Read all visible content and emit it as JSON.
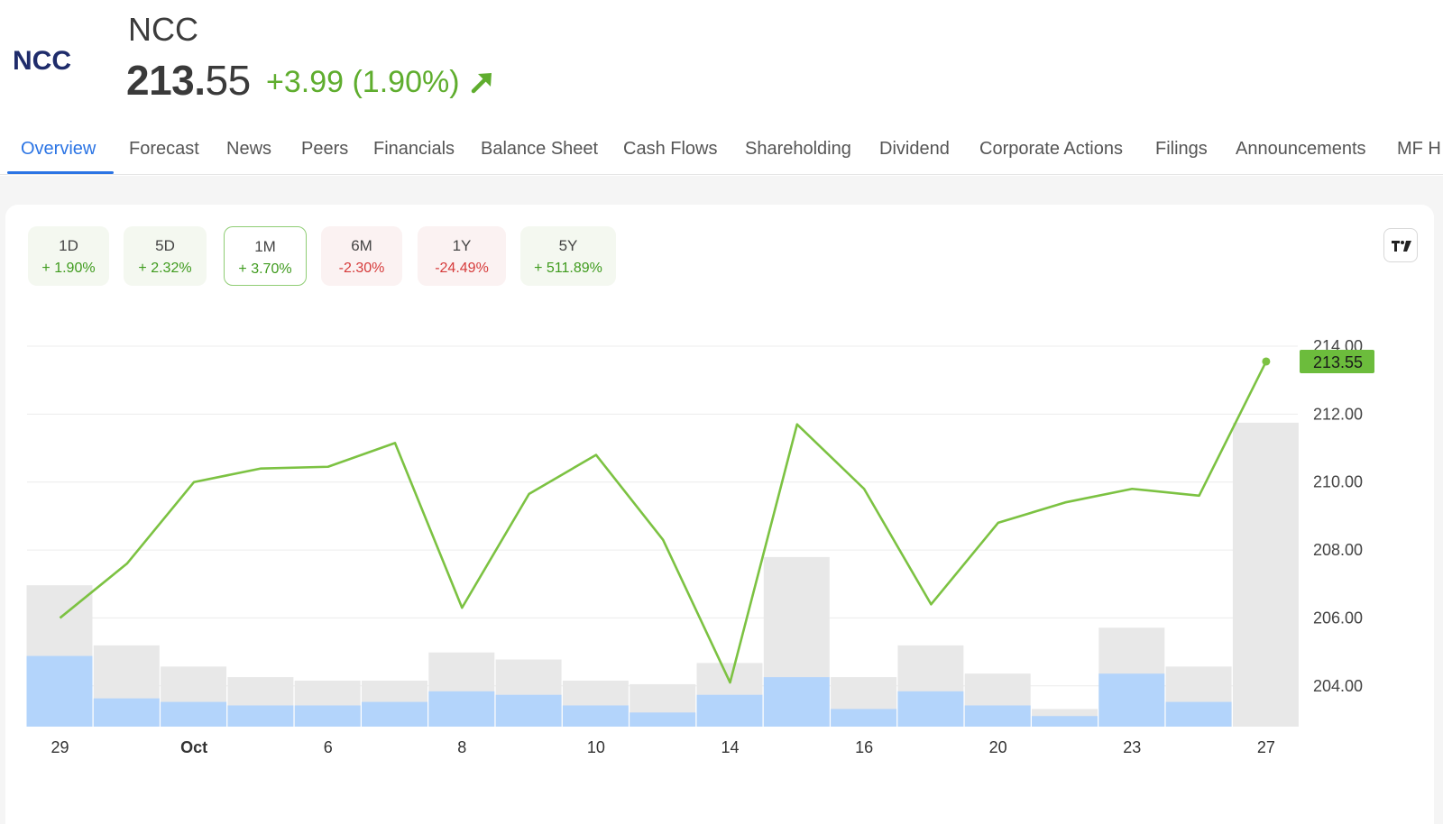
{
  "header": {
    "logo_text": "NCC",
    "name": "NCC",
    "price_int": "213.",
    "price_frac": "55",
    "change": "+3.99 (1.90%)",
    "trend_icon": "arrow-up-right-icon"
  },
  "tabs": [
    {
      "label": "Overview",
      "active": true
    },
    {
      "label": "Forecast"
    },
    {
      "label": "News"
    },
    {
      "label": "Peers"
    },
    {
      "label": "Financials"
    },
    {
      "label": "Balance Sheet"
    },
    {
      "label": "Cash Flows"
    },
    {
      "label": "Shareholding"
    },
    {
      "label": "Dividend"
    },
    {
      "label": "Corporate Actions"
    },
    {
      "label": "Filings"
    },
    {
      "label": "Announcements"
    },
    {
      "label": "MF H"
    }
  ],
  "periods": [
    {
      "label": "1D",
      "value": "+ 1.90%",
      "dir": "up"
    },
    {
      "label": "5D",
      "value": "+ 2.32%",
      "dir": "up"
    },
    {
      "label": "1M",
      "value": "+ 3.70%",
      "dir": "up",
      "active": true
    },
    {
      "label": "6M",
      "value": "-2.30%",
      "dir": "down"
    },
    {
      "label": "1Y",
      "value": "-24.49%",
      "dir": "down"
    },
    {
      "label": "5Y",
      "value": "+ 511.89%",
      "dir": "up"
    }
  ],
  "colors": {
    "line": "#7cc242",
    "volume_total": "#e8e8e8",
    "volume_delivery": "#b3d4fb",
    "price_badge": "#6cbc3c",
    "up": "#5fad2e",
    "down": "#d63b3b",
    "accent": "#2b74e4"
  },
  "chart_data": {
    "type": "line",
    "ylim": [
      202.8,
      214.0
    ],
    "yticks": [
      "214.00",
      "212.00",
      "210.00",
      "208.00",
      "206.00",
      "204.00"
    ],
    "ytick_values": [
      214,
      212,
      210,
      208,
      206,
      204
    ],
    "xtick_labels": [
      {
        "label": "29",
        "index": 0,
        "bold": false
      },
      {
        "label": "Oct",
        "index": 2,
        "bold": true
      },
      {
        "label": "6",
        "index": 4,
        "bold": false
      },
      {
        "label": "8",
        "index": 6,
        "bold": false
      },
      {
        "label": "10",
        "index": 8,
        "bold": false
      },
      {
        "label": "14",
        "index": 10,
        "bold": false
      },
      {
        "label": "16",
        "index": 12,
        "bold": false
      },
      {
        "label": "20",
        "index": 14,
        "bold": false
      },
      {
        "label": "23",
        "index": 16,
        "bold": false
      },
      {
        "label": "27",
        "index": 18,
        "bold": false
      }
    ],
    "series": [
      {
        "values": [
          206.0,
          207.6,
          210.0,
          210.4,
          210.45,
          211.15,
          206.3,
          209.65,
          210.8,
          208.3,
          204.1,
          211.7,
          209.8,
          206.4,
          208.8,
          209.4,
          209.8,
          209.6,
          213.55
        ]
      }
    ],
    "volume_total": [
      0.4,
      0.23,
      0.17,
      0.14,
      0.13,
      0.13,
      0.21,
      0.19,
      0.13,
      0.12,
      0.18,
      0.48,
      0.14,
      0.23,
      0.15,
      0.05,
      0.28,
      0.17,
      0.86
    ],
    "volume_delivery": [
      0.2,
      0.08,
      0.07,
      0.06,
      0.06,
      0.07,
      0.1,
      0.09,
      0.06,
      0.04,
      0.09,
      0.14,
      0.05,
      0.1,
      0.06,
      0.03,
      0.15,
      0.07,
      0.0
    ],
    "last_price_label": "213.55",
    "grid": true
  }
}
